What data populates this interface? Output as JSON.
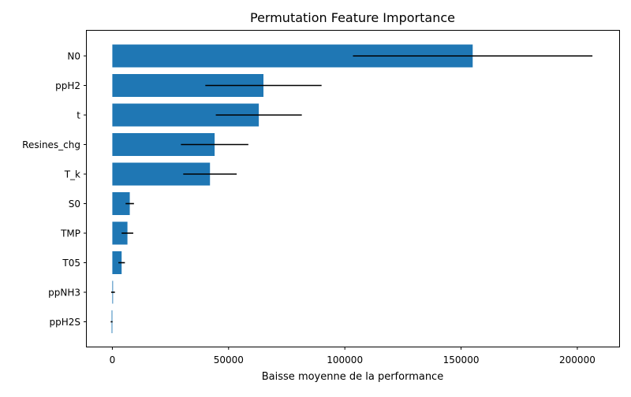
{
  "chart_data": {
    "type": "bar",
    "orientation": "horizontal",
    "title": "Permutation Feature Importance",
    "xlabel": "Baisse moyenne de la performance",
    "ylabel": "",
    "xlim": [
      -11000,
      218000
    ],
    "xticks": [
      0,
      50000,
      100000,
      150000,
      200000
    ],
    "xtick_labels": [
      "0",
      "50000",
      "100000",
      "150000",
      "200000"
    ],
    "grid": false,
    "bar_color": "#1f77b4",
    "errorbar_color": "#000000",
    "categories": [
      "N0",
      "ppH2",
      "t",
      "Resines_chg",
      "T_k",
      "S0",
      "TMP",
      "T05",
      "ppNH3",
      "ppH2S"
    ],
    "values": [
      155000,
      65000,
      63000,
      44000,
      42000,
      7500,
      6500,
      4000,
      300,
      -300
    ],
    "errors": [
      51500,
      25000,
      18500,
      14500,
      11500,
      1800,
      2500,
      1400,
      800,
      400
    ]
  }
}
